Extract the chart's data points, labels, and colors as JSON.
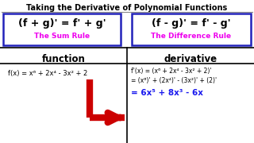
{
  "title": "Taking the Derivative of Polynomial Functions",
  "bg_color": "#ffffff",
  "title_color": "#000000",
  "box1_text": "(f + g)' = f' + g'",
  "box1_sub": "The Sum Rule",
  "box2_text": "(f - g)' = f' - g'",
  "box2_sub": "The Difference Rule",
  "box_border_color": "#2222bb",
  "box_sub_color": "#ee00ee",
  "col1_header": "function",
  "col2_header": "derivative",
  "func_text": "f(x) = x⁶ + 2x⁴ - 3x² + 2",
  "deriv_line1": "f'(x) = (x⁶ + 2x⁴ - 3x² + 2)'",
  "deriv_line2": "= (x⁶)' + (2x⁴)' - (3x²)' + (2)'",
  "deriv_line3": "= 6x⁵ + 8x³ - 6x",
  "arrow_color": "#cc0000",
  "result_color": "#1a1aee",
  "text_color": "#000000",
  "header_color": "#000000",
  "title_underline_color": "#888888",
  "divider_color": "#000000"
}
